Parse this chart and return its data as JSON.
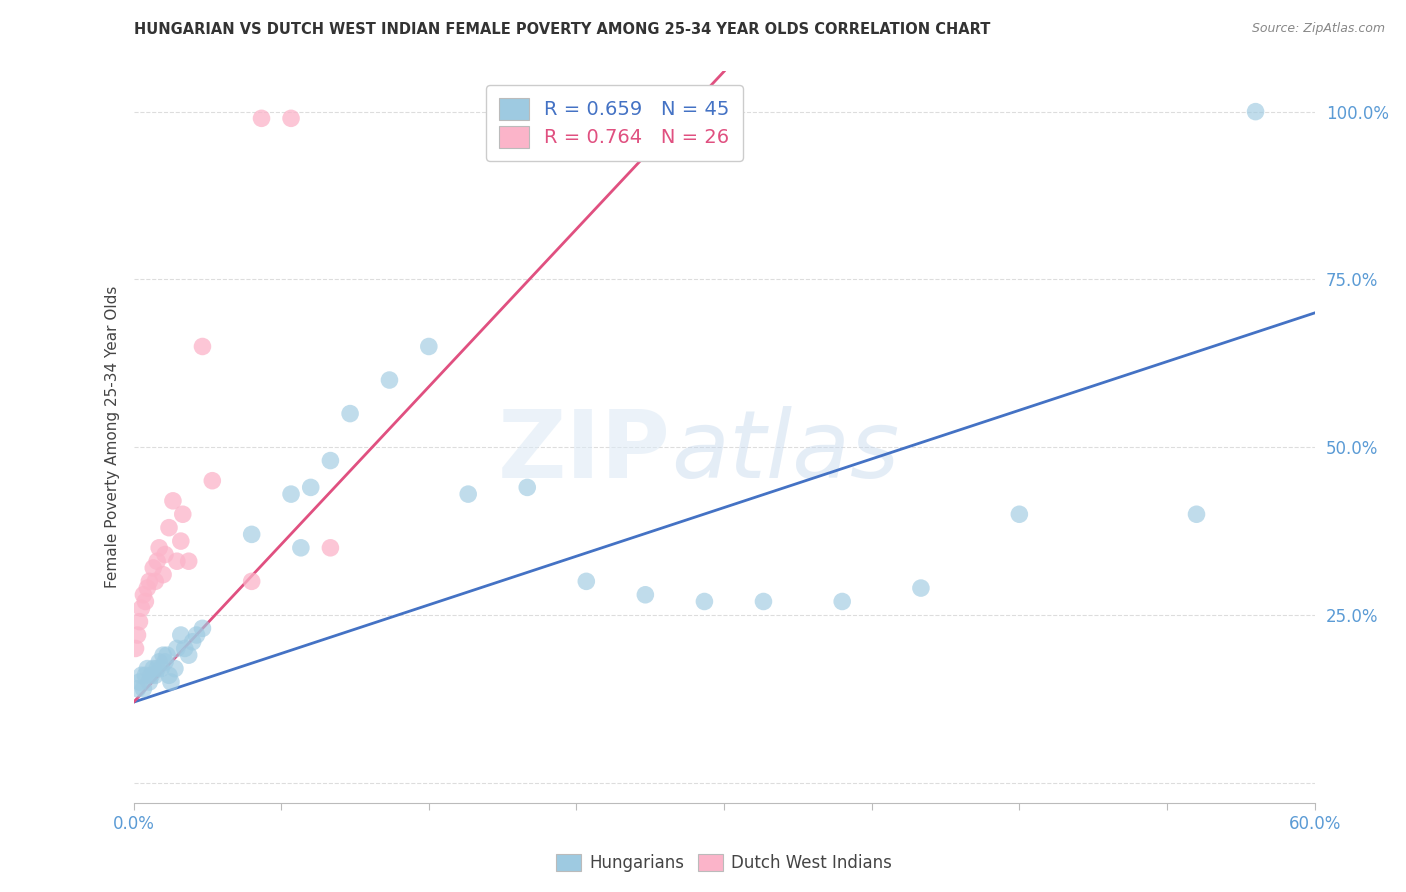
{
  "title": "HUNGARIAN VS DUTCH WEST INDIAN FEMALE POVERTY AMONG 25-34 YEAR OLDS CORRELATION CHART",
  "source": "Source: ZipAtlas.com",
  "ylabel": "Female Poverty Among 25-34 Year Olds",
  "ytick_labels": [
    "",
    "25.0%",
    "50.0%",
    "75.0%",
    "100.0%"
  ],
  "ytick_values": [
    0.0,
    0.25,
    0.5,
    0.75,
    1.0
  ],
  "xmin": 0.0,
  "xmax": 0.6,
  "ymin": -0.03,
  "ymax": 1.06,
  "legend_blue_text": "R = 0.659   N = 45",
  "legend_pink_text": "R = 0.764   N = 26",
  "blue_fill": "#9ecae1",
  "pink_fill": "#fbb4c9",
  "blue_line": "#4472c4",
  "pink_line": "#e05080",
  "blue_line_x": [
    0.0,
    0.6
  ],
  "blue_line_y": [
    0.12,
    0.7
  ],
  "pink_line_x": [
    0.0,
    0.3
  ],
  "pink_line_y": [
    0.12,
    1.06
  ],
  "hungarian_x": [
    0.002,
    0.003,
    0.004,
    0.005,
    0.006,
    0.007,
    0.008,
    0.009,
    0.01,
    0.011,
    0.012,
    0.013,
    0.014,
    0.015,
    0.016,
    0.017,
    0.018,
    0.019,
    0.021,
    0.022,
    0.024,
    0.026,
    0.028,
    0.03,
    0.032,
    0.035,
    0.06,
    0.08,
    0.085,
    0.09,
    0.1,
    0.11,
    0.13,
    0.15,
    0.17,
    0.2,
    0.23,
    0.26,
    0.29,
    0.32,
    0.36,
    0.4,
    0.45,
    0.54,
    0.57
  ],
  "hungarian_y": [
    0.14,
    0.15,
    0.16,
    0.14,
    0.16,
    0.17,
    0.15,
    0.16,
    0.17,
    0.16,
    0.17,
    0.18,
    0.17,
    0.19,
    0.18,
    0.19,
    0.16,
    0.15,
    0.17,
    0.2,
    0.22,
    0.2,
    0.19,
    0.21,
    0.22,
    0.23,
    0.37,
    0.43,
    0.35,
    0.44,
    0.48,
    0.55,
    0.6,
    0.65,
    0.43,
    0.44,
    0.3,
    0.28,
    0.27,
    0.27,
    0.27,
    0.29,
    0.4,
    0.4,
    1.0
  ],
  "dutch_x": [
    0.001,
    0.002,
    0.003,
    0.004,
    0.005,
    0.006,
    0.007,
    0.008,
    0.01,
    0.011,
    0.012,
    0.013,
    0.015,
    0.016,
    0.018,
    0.02,
    0.022,
    0.024,
    0.025,
    0.028,
    0.035,
    0.04,
    0.06,
    0.065,
    0.08,
    0.1
  ],
  "dutch_y": [
    0.2,
    0.22,
    0.24,
    0.26,
    0.28,
    0.27,
    0.29,
    0.3,
    0.32,
    0.3,
    0.33,
    0.35,
    0.31,
    0.34,
    0.38,
    0.42,
    0.33,
    0.36,
    0.4,
    0.33,
    0.65,
    0.45,
    0.3,
    0.99,
    0.99,
    0.35
  ]
}
